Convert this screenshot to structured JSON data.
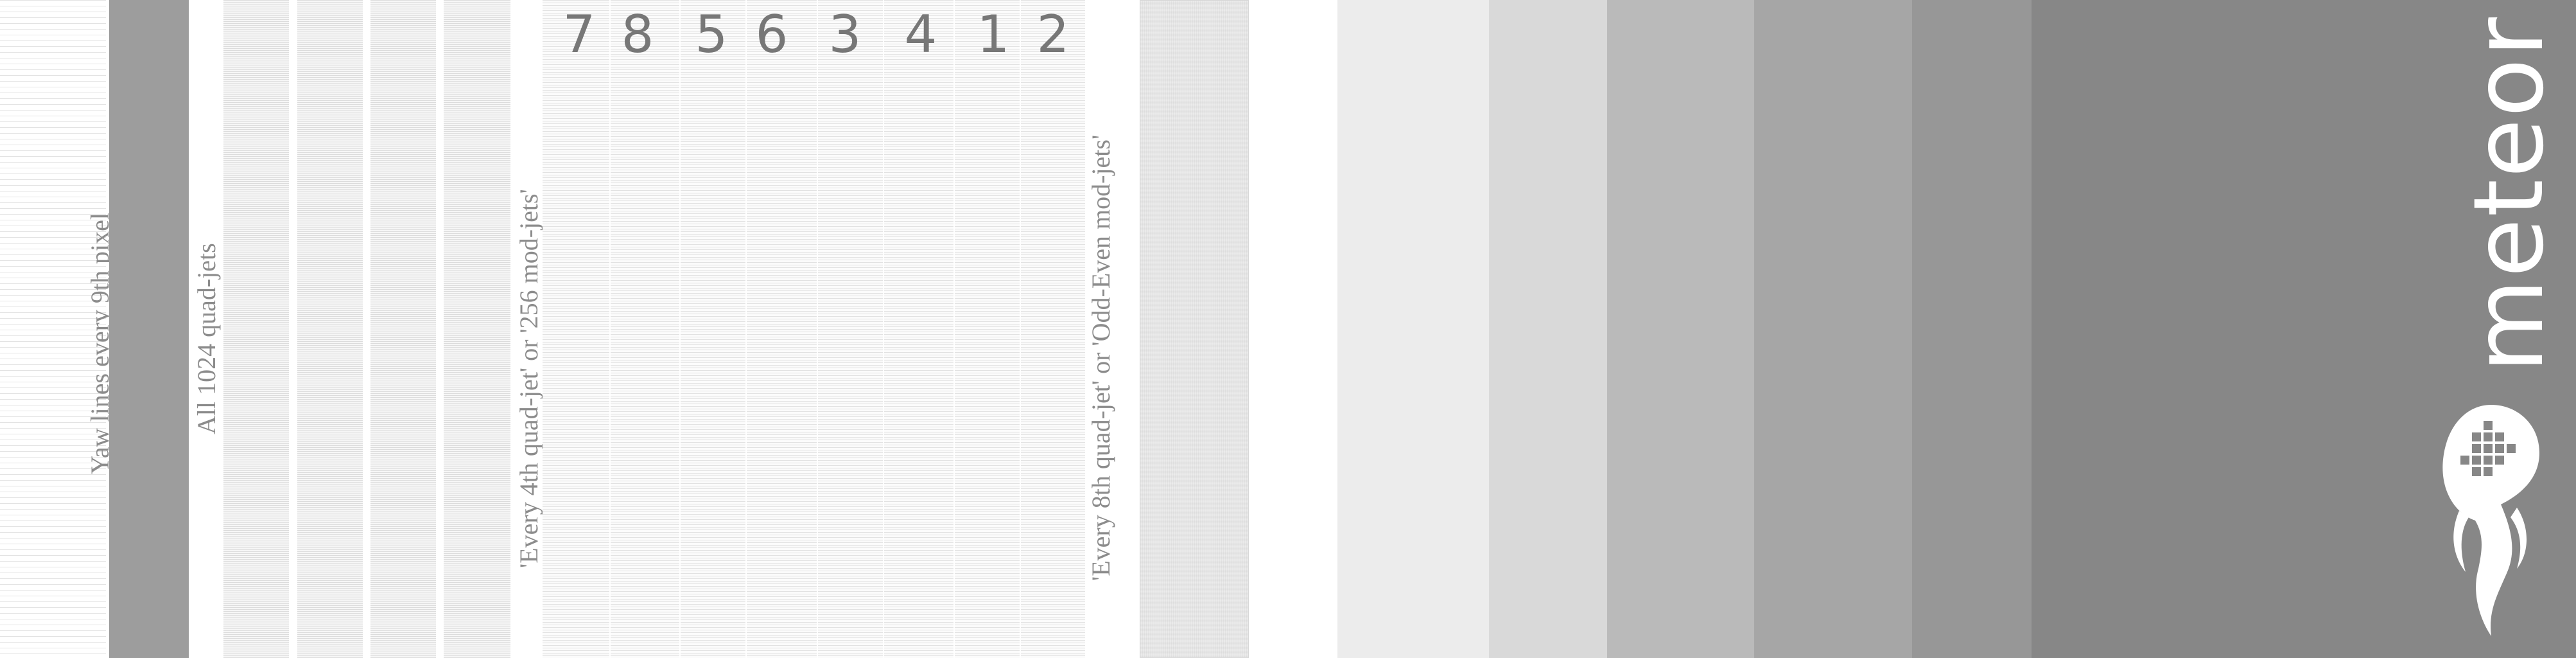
{
  "labels": {
    "yaw": "Yaw lines every 9th pixel",
    "all_quad": "All 1024 quad-jets",
    "every_4th": "'Every 4th quad-jet' or '256 mod-jets'",
    "every_8th": "'Every 8th quad-jet' or 'Odd-Even mod-jets'"
  },
  "numbers": [
    "7",
    "8",
    "5",
    "6",
    "3",
    "4",
    "1",
    "2"
  ],
  "brand": {
    "name": "meteor"
  },
  "gray_steps": [
    {
      "name": "step-1",
      "color": "#ffffff"
    },
    {
      "name": "step-2",
      "color": "#ececec"
    },
    {
      "name": "step-3",
      "color": "#d9d9d9"
    },
    {
      "name": "step-4",
      "color": "#bababa"
    },
    {
      "name": "step-5",
      "color": "#a6a6a6"
    },
    {
      "name": "step-6",
      "color": "#979797"
    },
    {
      "name": "step-7",
      "color": "#878787"
    }
  ]
}
